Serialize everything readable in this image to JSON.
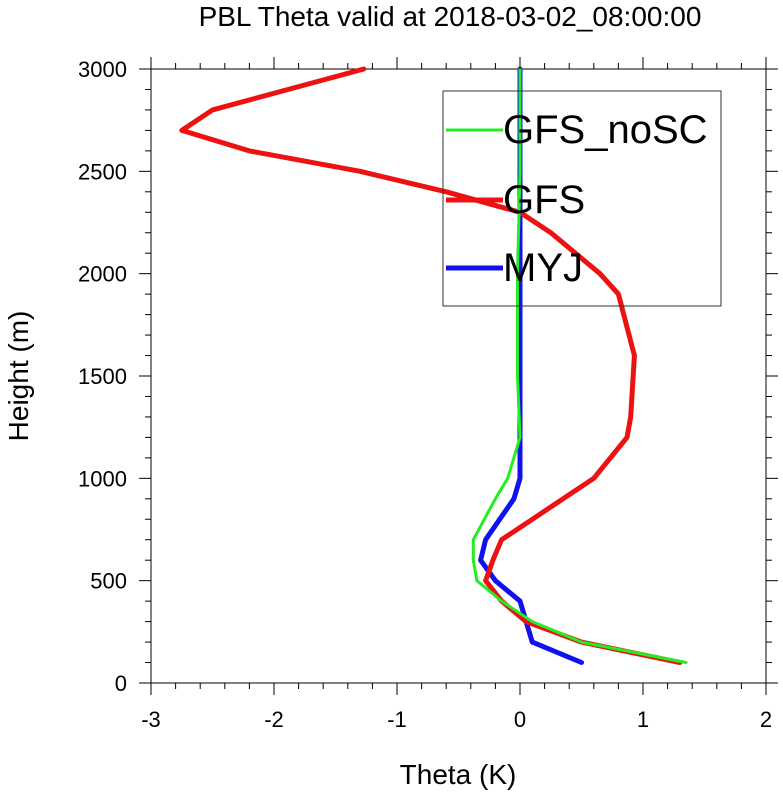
{
  "chart_data": {
    "type": "line",
    "title": "PBL Theta valid at 2018-03-02_08:00:00",
    "xlabel": "Theta (K)",
    "ylabel": "Height (m)",
    "xlim": [
      -3,
      2
    ],
    "ylim": [
      0,
      3000
    ],
    "x_ticks": [
      "-3",
      "-2",
      "-1",
      "0",
      "1",
      "2"
    ],
    "y_ticks": [
      "0",
      "500",
      "1000",
      "1500",
      "2000",
      "2500",
      "3000"
    ],
    "grid": false,
    "legend_position": "top-right",
    "series": [
      {
        "name": "GFS_noSC",
        "color": "#22ee22",
        "points": [
          [
            1.35,
            100
          ],
          [
            0.5,
            200
          ],
          [
            0.1,
            300
          ],
          [
            -0.15,
            400
          ],
          [
            -0.35,
            500
          ],
          [
            -0.38,
            600
          ],
          [
            -0.38,
            700
          ],
          [
            -0.2,
            900
          ],
          [
            -0.1,
            1000
          ],
          [
            0.0,
            1200
          ],
          [
            -0.02,
            1500
          ],
          [
            -0.02,
            2000
          ],
          [
            0.0,
            2500
          ],
          [
            0.0,
            3000
          ]
        ]
      },
      {
        "name": "GFS",
        "color": "#ee1111",
        "points": [
          [
            1.3,
            100
          ],
          [
            0.5,
            200
          ],
          [
            0.05,
            300
          ],
          [
            -0.15,
            400
          ],
          [
            -0.28,
            500
          ],
          [
            -0.22,
            600
          ],
          [
            -0.15,
            700
          ],
          [
            0.1,
            800
          ],
          [
            0.35,
            900
          ],
          [
            0.6,
            1000
          ],
          [
            0.87,
            1200
          ],
          [
            0.9,
            1300
          ],
          [
            0.93,
            1600
          ],
          [
            0.8,
            1900
          ],
          [
            0.65,
            2000
          ],
          [
            0.25,
            2200
          ],
          [
            0.0,
            2300
          ],
          [
            -0.6,
            2400
          ],
          [
            -1.3,
            2500
          ],
          [
            -2.2,
            2600
          ],
          [
            -2.75,
            2700
          ],
          [
            -2.5,
            2800
          ],
          [
            -1.27,
            3000
          ]
        ]
      },
      {
        "name": "MYJ",
        "color": "#1111ee",
        "points": [
          [
            0.5,
            100
          ],
          [
            0.1,
            200
          ],
          [
            0.05,
            300
          ],
          [
            0.0,
            400
          ],
          [
            -0.2,
            500
          ],
          [
            -0.32,
            600
          ],
          [
            -0.28,
            700
          ],
          [
            -0.05,
            900
          ],
          [
            0.0,
            1000
          ],
          [
            0.0,
            1200
          ],
          [
            0.0,
            2000
          ],
          [
            0.0,
            3000
          ]
        ]
      }
    ]
  }
}
